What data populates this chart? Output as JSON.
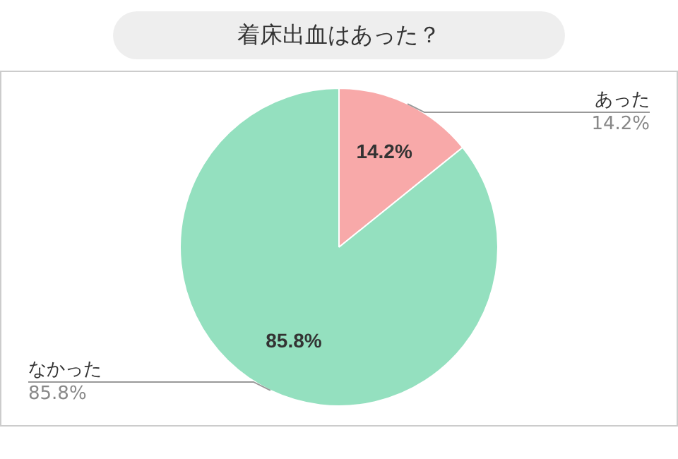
{
  "chart_data": {
    "type": "pie",
    "title": "着床出血はあった？",
    "categories": [
      "あった",
      "なかった"
    ],
    "values": [
      14.2,
      85.8
    ],
    "value_labels": [
      "14.2%",
      "85.8%"
    ],
    "colors": [
      "#f8a9a9",
      "#94e0bf"
    ],
    "legend": false
  }
}
